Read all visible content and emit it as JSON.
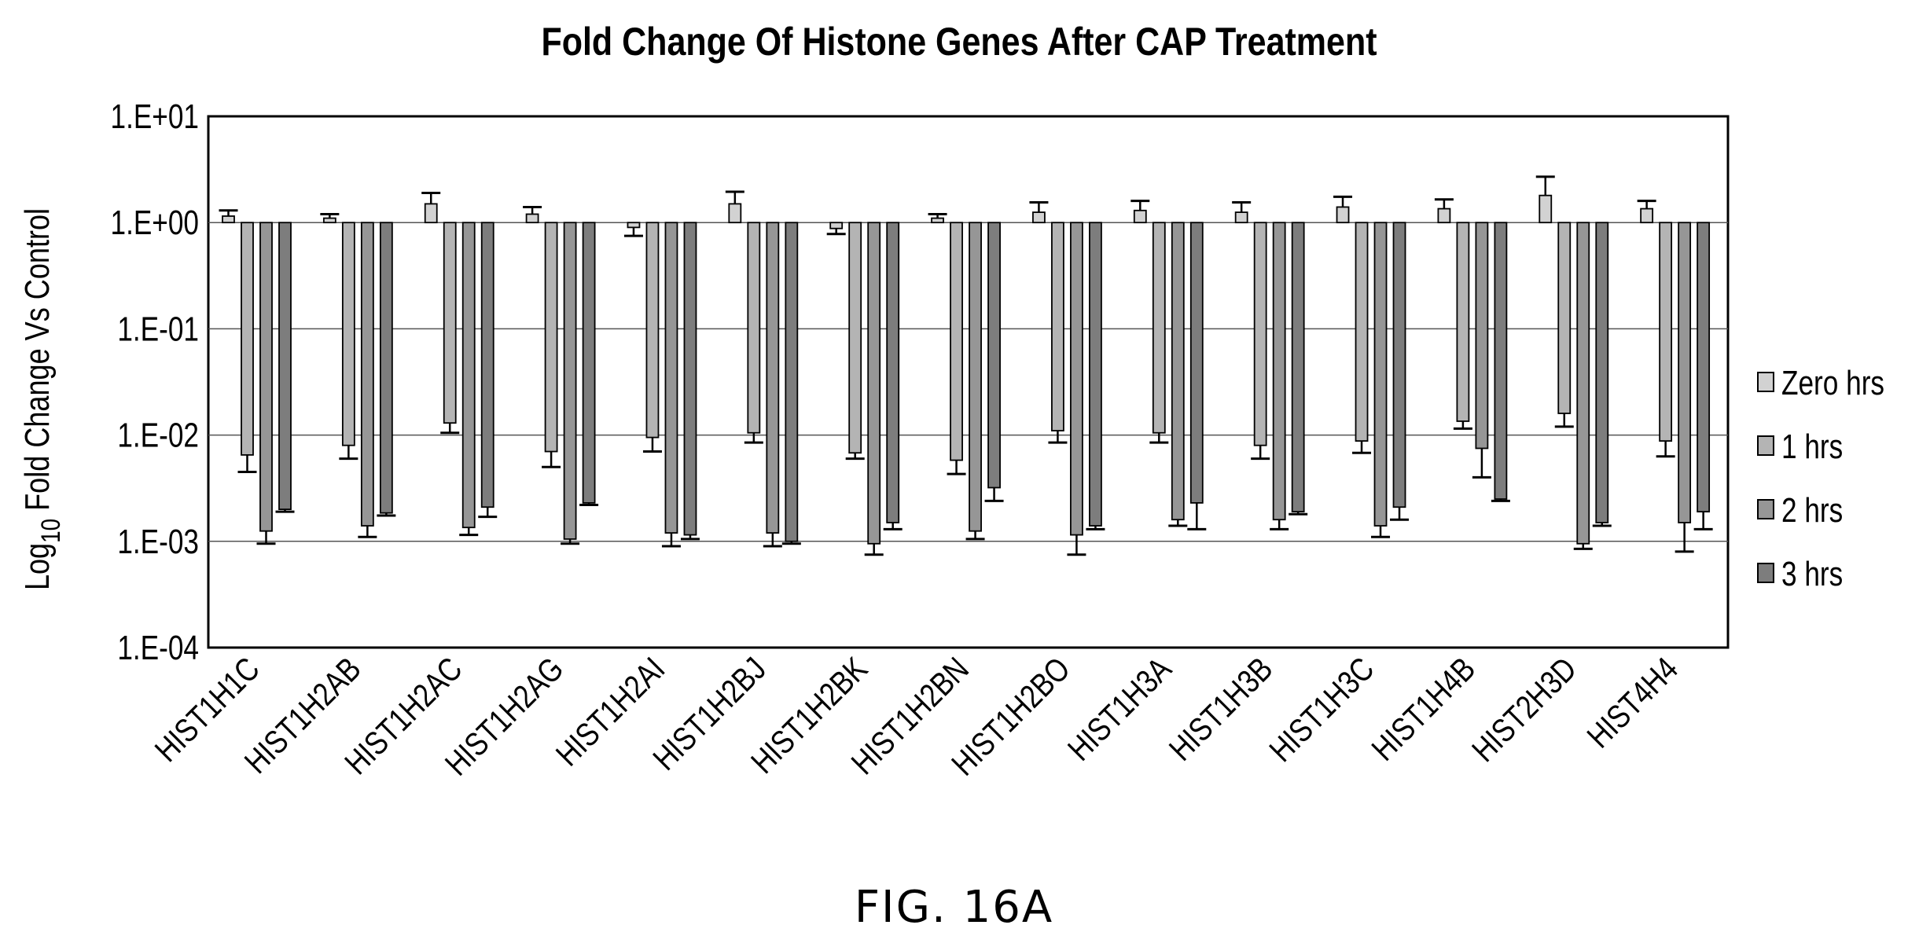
{
  "figure": {
    "caption": "FIG. 16A"
  },
  "chart_data": {
    "type": "bar",
    "title": "Fold Change Of Histone Genes After CAP Treatment",
    "ylabel_prefix": "Log",
    "ylabel_subscript": "10",
    "ylabel_suffix": " Fold Change Vs Control",
    "xlabel": "",
    "y_scale": "log10",
    "ylim": [
      0.0001,
      10
    ],
    "yticks": [
      {
        "value": 10,
        "label": "1.E+01"
      },
      {
        "value": 1,
        "label": "1.E+00"
      },
      {
        "value": 0.1,
        "label": "1.E-01"
      },
      {
        "value": 0.01,
        "label": "1.E-02"
      },
      {
        "value": 0.001,
        "label": "1.E-03"
      },
      {
        "value": 0.0001,
        "label": "1.E-04"
      }
    ],
    "grid": true,
    "legend_position": "right",
    "categories": [
      "HIST1H1C",
      "HIST1H2AB",
      "HIST1H2AC",
      "HIST1H2AG",
      "HIST1H2AI",
      "HIST1H2BJ",
      "HIST1H2BK",
      "HIST1H2BN",
      "HIST1H2BO",
      "HIST1H3A",
      "HIST1H3B",
      "HIST1H3C",
      "HIST1H4B",
      "HIST2H3D",
      "HIST4H4"
    ],
    "series": [
      {
        "name": "Zero hrs",
        "color": "#d2d2d2",
        "values": [
          1.15,
          1.1,
          1.5,
          1.2,
          0.9,
          1.5,
          0.88,
          1.1,
          1.25,
          1.3,
          1.25,
          1.4,
          1.35,
          1.8,
          1.35
        ],
        "errors": [
          0.15,
          0.1,
          0.4,
          0.2,
          0.15,
          0.45,
          0.1,
          0.1,
          0.3,
          0.3,
          0.3,
          0.35,
          0.3,
          0.9,
          0.25
        ]
      },
      {
        "name": "1 hrs",
        "color": "#b4b4b4",
        "values": [
          0.0065,
          0.008,
          0.013,
          0.007,
          0.0095,
          0.0105,
          0.0068,
          0.0058,
          0.011,
          0.0105,
          0.008,
          0.0088,
          0.0135,
          0.016,
          0.0088
        ],
        "errors": [
          0.002,
          0.002,
          0.0025,
          0.002,
          0.0025,
          0.002,
          0.0008,
          0.0015,
          0.0025,
          0.002,
          0.002,
          0.002,
          0.002,
          0.004,
          0.0025
        ]
      },
      {
        "name": "2 hrs",
        "color": "#969696",
        "values": [
          0.00125,
          0.0014,
          0.00135,
          0.00105,
          0.0012,
          0.0012,
          0.00095,
          0.00125,
          0.00115,
          0.0016,
          0.0016,
          0.0014,
          0.0075,
          0.00095,
          0.0015
        ],
        "errors": [
          0.0003,
          0.0003,
          0.0002,
          0.0001,
          0.0003,
          0.0003,
          0.0002,
          0.0002,
          0.0004,
          0.0002,
          0.0003,
          0.0003,
          0.0035,
          0.0001,
          0.0007
        ]
      },
      {
        "name": "3 hrs",
        "color": "#7d7d7d",
        "values": [
          0.002,
          0.00185,
          0.0021,
          0.0023,
          0.00115,
          0.001,
          0.0015,
          0.0032,
          0.0014,
          0.0023,
          0.0019,
          0.0021,
          0.0025,
          0.0015,
          0.0019
        ],
        "errors": [
          0.0001,
          0.0001,
          0.0004,
          0.0001,
          0.0001,
          5e-05,
          0.0002,
          0.0008,
          0.0001,
          0.001,
          0.0001,
          0.0005,
          0.0001,
          0.0001,
          0.0006
        ]
      }
    ]
  }
}
